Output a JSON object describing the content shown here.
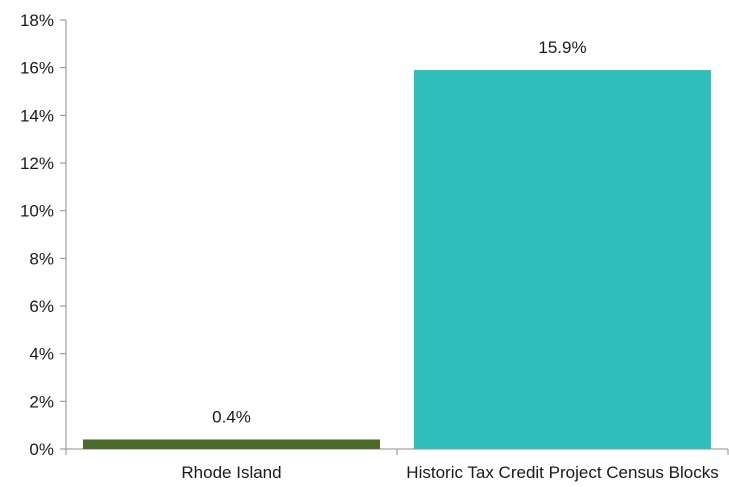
{
  "chart_data": {
    "type": "bar",
    "title": "",
    "xlabel": "",
    "ylabel": "",
    "ylim": [
      0,
      18
    ],
    "yticks": [
      0,
      2,
      4,
      6,
      8,
      10,
      12,
      14,
      16,
      18
    ],
    "ytick_labels": [
      "0%",
      "2%",
      "4%",
      "6%",
      "8%",
      "10%",
      "12%",
      "14%",
      "16%",
      "18%"
    ],
    "categories": [
      "Rhode Island",
      "Historic Tax Credit Project Census Blocks"
    ],
    "values": [
      0.4,
      15.9
    ],
    "data_labels": [
      "0.4%",
      "15.9%"
    ],
    "colors": [
      "#4a6b2a",
      "#2ebfbd"
    ],
    "grid": false,
    "legend": "none"
  }
}
